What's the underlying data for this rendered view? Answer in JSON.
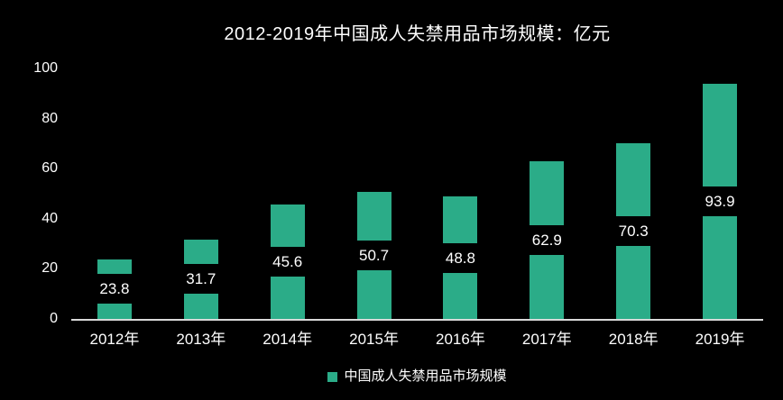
{
  "chart_data": {
    "type": "bar",
    "title": "2012-2019年中国成人失禁用品市场规模：亿元",
    "categories": [
      "2012年",
      "2013年",
      "2014年",
      "2015年",
      "2016年",
      "2017年",
      "2018年",
      "2019年"
    ],
    "series": [
      {
        "name": "中国成人失禁用品市场规模",
        "values": [
          23.8,
          31.7,
          45.6,
          50.7,
          48.8,
          62.9,
          70.3,
          93.9
        ],
        "value_labels": [
          "23.8",
          "31.7",
          "45.6",
          "50.7",
          "48.8",
          "62.9",
          "70.3",
          "93.9"
        ]
      }
    ],
    "xlabel": "",
    "ylabel": "",
    "ylim": [
      0,
      100
    ],
    "yticks": [
      0,
      20,
      40,
      60,
      80,
      100
    ],
    "grid": false,
    "legend_position": "bottom",
    "value_label_position": "center-of-bar",
    "colors": {
      "background": "#000000",
      "bar": "#2bac88",
      "text": "#ffffff",
      "axis_line": "#d9d9d9",
      "label_band": "#000000"
    }
  }
}
